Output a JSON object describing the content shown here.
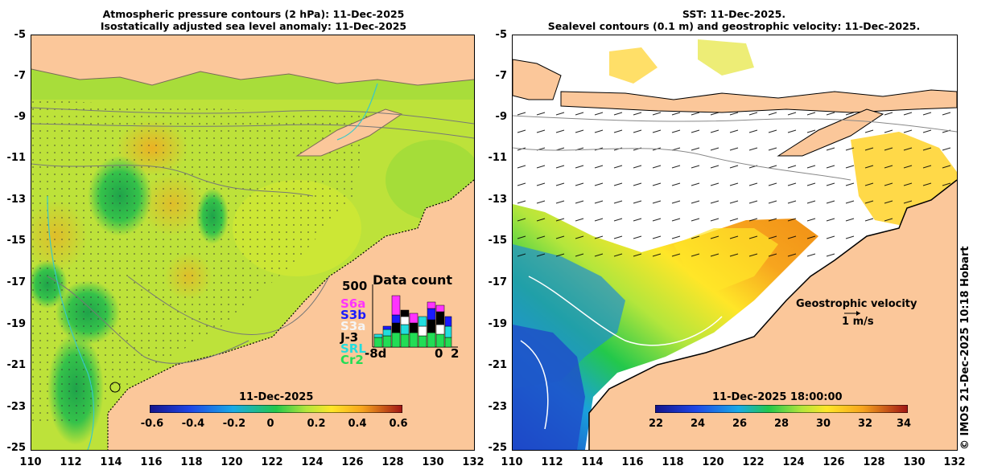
{
  "left_panel": {
    "title_line1": "Atmospheric pressure contours (2 hPa): 11-Dec-2025",
    "title_line2": "Isostatically adjusted sea level anomaly: 11-Dec-2025",
    "colorbar_label": "11-Dec-2025",
    "colorbar_ticks": [
      "-0.6",
      "-0.4",
      "-0.2",
      "0",
      "0.2",
      "0.4",
      "0.6"
    ],
    "data_count": {
      "title": "Data count",
      "max_label": "500",
      "missions": [
        {
          "name": "S6a",
          "color": "#ff33ff"
        },
        {
          "name": "S3b",
          "color": "#1a1aff"
        },
        {
          "name": "S3a",
          "color": "#f0f0f0"
        },
        {
          "name": "J-3",
          "color": "#000000"
        },
        {
          "name": "SRL",
          "color": "#22dddd"
        },
        {
          "name": "Cr2",
          "color": "#22dd55"
        }
      ],
      "axis_labels": [
        "-8d",
        "0",
        "2"
      ]
    }
  },
  "right_panel": {
    "title_line1": "SST: 11-Dec-2025.",
    "title_line2": "Sealevel contours (0.1 m) and geostrophic velocity: 11-Dec-2025.",
    "colorbar_label": "11-Dec-2025 18:00:00",
    "colorbar_ticks": [
      "22",
      "24",
      "26",
      "28",
      "30",
      "32",
      "34"
    ],
    "velocity_legend_title": "Geostrophic velocity",
    "velocity_legend_scale": "1 m/s"
  },
  "y_axis_ticks": [
    "-5",
    "-7",
    "-9",
    "-11",
    "-13",
    "-15",
    "-17",
    "-19",
    "-21",
    "-23",
    "-25"
  ],
  "x_axis_ticks": [
    "110",
    "112",
    "114",
    "116",
    "118",
    "120",
    "122",
    "124",
    "126",
    "128",
    "130",
    "132"
  ],
  "copyright": "© IMOS 21-Dec-2025 10:18 Hobart",
  "colors": {
    "land": "#fbc79a",
    "sla_background": "#b4e63c",
    "cloud": "#ffffff"
  }
}
